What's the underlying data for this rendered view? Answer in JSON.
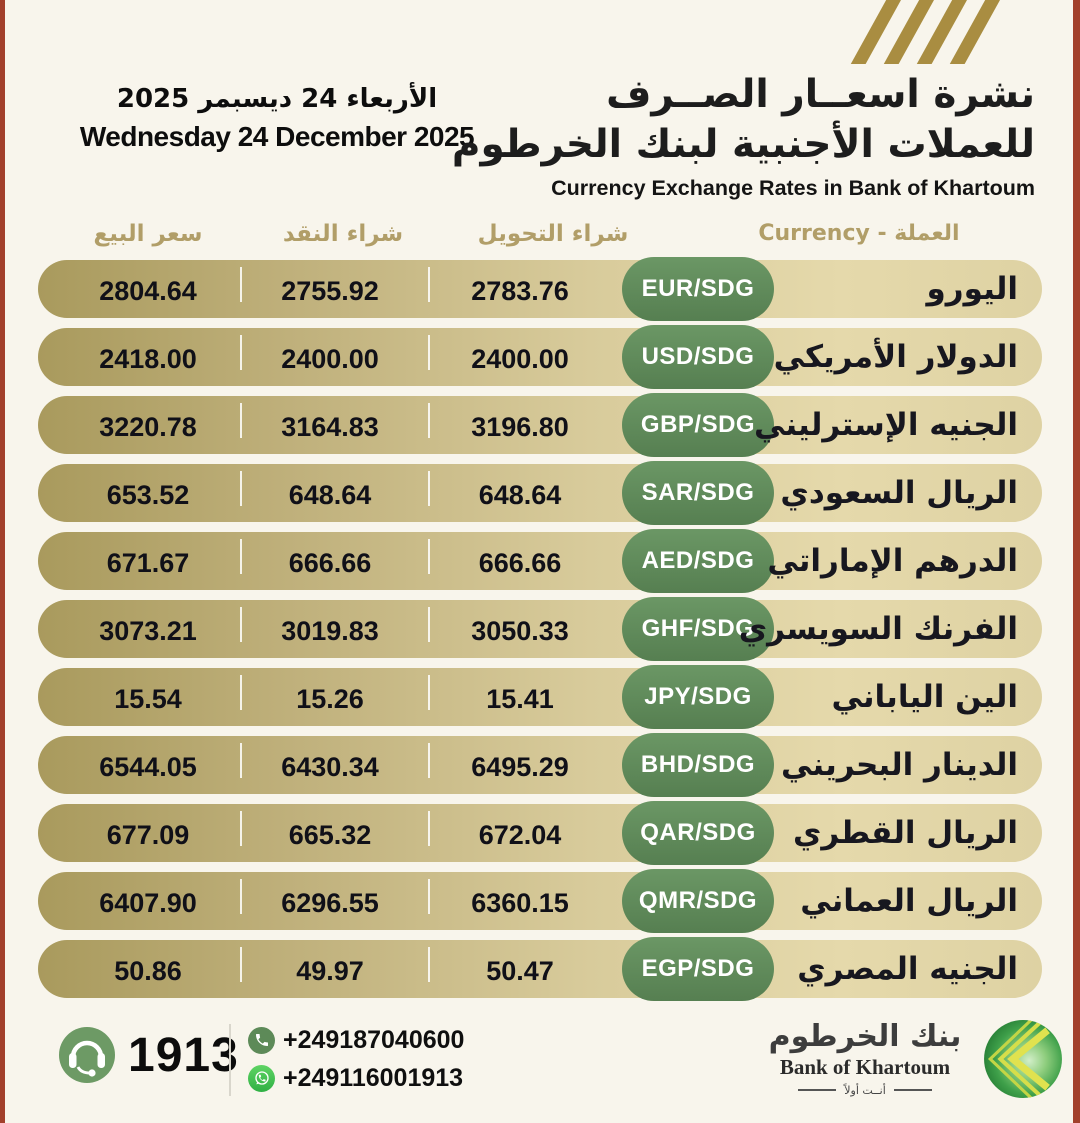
{
  "header": {
    "title_ar_line1": "نشرة اسعــار الصــرف",
    "title_ar_line2": "للعملات الأجنبية لبنك الخرطوم",
    "subtitle_en": "Currency Exchange Rates in Bank of Khartoum",
    "date_ar": "الأربعاء 24 ديسبمر 2025",
    "date_en": "Wednesday 24 December 2025"
  },
  "table": {
    "columns": {
      "sell": "سعر البيع",
      "cash_buy": "شراء النقد",
      "transfer_buy": "شراء التحويل",
      "currency": "العملة - Currency"
    },
    "rows": [
      {
        "name_ar": "اليورو",
        "code": "EUR/SDG",
        "transfer_buy": "2783.76",
        "cash_buy": "2755.92",
        "sell": "2804.64"
      },
      {
        "name_ar": "الدولار الأمريكي",
        "code": "USD/SDG",
        "transfer_buy": "2400.00",
        "cash_buy": "2400.00",
        "sell": "2418.00"
      },
      {
        "name_ar": "الجنيه الإسترليني",
        "code": "GBP/SDG",
        "transfer_buy": "3196.80",
        "cash_buy": "3164.83",
        "sell": "3220.78"
      },
      {
        "name_ar": "الريال السعودي",
        "code": "SAR/SDG",
        "transfer_buy": "648.64",
        "cash_buy": "648.64",
        "sell": "653.52"
      },
      {
        "name_ar": "الدرهم الإماراتي",
        "code": "AED/SDG",
        "transfer_buy": "666.66",
        "cash_buy": "666.66",
        "sell": "671.67"
      },
      {
        "name_ar": "الفرنك السويسري",
        "code": "GHF/SDG",
        "transfer_buy": "3050.33",
        "cash_buy": "3019.83",
        "sell": "3073.21"
      },
      {
        "name_ar": "الين الياباني",
        "code": "JPY/SDG",
        "transfer_buy": "15.41",
        "cash_buy": "15.26",
        "sell": "15.54"
      },
      {
        "name_ar": "الدينار البحريني",
        "code": "BHD/SDG",
        "transfer_buy": "6495.29",
        "cash_buy": "6430.34",
        "sell": "6544.05"
      },
      {
        "name_ar": "الريال القطري",
        "code": "QAR/SDG",
        "transfer_buy": "672.04",
        "cash_buy": "665.32",
        "sell": "677.09"
      },
      {
        "name_ar": "الريال العماني",
        "code": "QMR/SDG",
        "transfer_buy": "6360.15",
        "cash_buy": "6296.55",
        "sell": "6407.90"
      },
      {
        "name_ar": "الجنيه المصري",
        "code": "EGP/SDG",
        "transfer_buy": "50.47",
        "cash_buy": "49.97",
        "sell": "50.86"
      }
    ]
  },
  "footer": {
    "hotline": "1913",
    "phone": "+249187040600",
    "whatsapp": "+249116001913",
    "logo": {
      "name_ar": "بنك الخرطوم",
      "name_en": "Bank of Khartoum",
      "tagline_ar": "أنــت أولاً"
    }
  },
  "colors": {
    "background": "#f8f5ec",
    "edge_maroon": "#a2402b",
    "row_gold_dark": "#a99a5d",
    "row_gold_light": "#e5d9ab",
    "badge_green": "#5d8a5e",
    "header_gold": "#b19e68",
    "stripe_gold": "#a98d41",
    "text_dark": "#101018",
    "whatsapp_green": "#2fb044"
  }
}
